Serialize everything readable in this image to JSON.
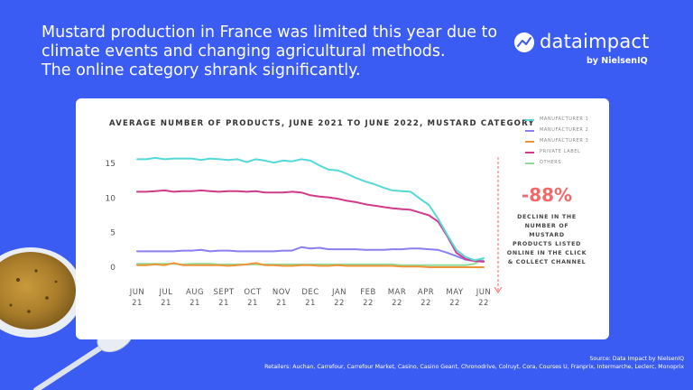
{
  "headline": {
    "line1": "Mustard production in France was limited this year due to",
    "line2": "climate events and changing agricultural methods.",
    "line3": "The online category shrank significantly."
  },
  "logo": {
    "name": "dataimpact",
    "sub": "by NielsenIQ"
  },
  "callout": {
    "value": "-88%",
    "desc_lines": [
      "DECLINE IN THE",
      "NUMBER OF MUSTARD",
      "PRODUCTS LISTED",
      "ONLINE IN THE CLICK",
      "& COLLECT CHANNEL"
    ]
  },
  "colors": {
    "background": "#3b5cf3",
    "manufacturer_1": "#55d8d8",
    "manufacturer_2": "#8b7ff0",
    "manufacturer_3": "#f0943a",
    "private_label": "#d23a8a",
    "others": "#8fdc9a",
    "callout": "#f06a6a"
  },
  "chart_data": {
    "type": "line",
    "title": "AVERAGE NUMBER OF PRODUCTS, JUNE 2021 TO JUNE 2022, MUSTARD CATEGORY",
    "xlabel": "",
    "ylabel": "",
    "ylim": [
      0,
      16
    ],
    "yticks": [
      "0",
      "5",
      "10",
      "15"
    ],
    "x_ticks": [
      {
        "month": "JUN",
        "year": "21"
      },
      {
        "month": "JUL",
        "year": "21"
      },
      {
        "month": "AUG",
        "year": "21"
      },
      {
        "month": "SEPT",
        "year": "21"
      },
      {
        "month": "OCT",
        "year": "21"
      },
      {
        "month": "NOV",
        "year": "21"
      },
      {
        "month": "DEC",
        "year": "21"
      },
      {
        "month": "JAN",
        "year": "22"
      },
      {
        "month": "FEB",
        "year": "22"
      },
      {
        "month": "MAR",
        "year": "22"
      },
      {
        "month": "APR",
        "year": "22"
      },
      {
        "month": "MAY",
        "year": "22"
      },
      {
        "month": "JUN",
        "year": "22"
      }
    ],
    "grid": false,
    "legend": "top-right",
    "series": [
      {
        "name": "MANUFACTURER 1",
        "color": "#55d8d8",
        "values": [
          15.6,
          15.6,
          15.8,
          15.6,
          15.7,
          15.7,
          15.7,
          15.5,
          15.7,
          15.6,
          15.5,
          15.6,
          15.2,
          15.6,
          15.4,
          15.1,
          15.4,
          15.3,
          15.6,
          15.4,
          14.7,
          14.1,
          14.0,
          13.5,
          12.9,
          12.4,
          12.0,
          11.5,
          11.1,
          11.0,
          10.9,
          9.9,
          9.0,
          7.0,
          4.7,
          2.5,
          1.5,
          1.0,
          1.3
        ]
      },
      {
        "name": "MANUFACTURER 2",
        "color": "#8b7ff0",
        "values": [
          2.3,
          2.3,
          2.3,
          2.3,
          2.3,
          2.4,
          2.4,
          2.5,
          2.3,
          2.4,
          2.4,
          2.3,
          2.3,
          2.3,
          2.3,
          2.3,
          2.4,
          2.4,
          2.9,
          2.7,
          2.8,
          2.6,
          2.6,
          2.6,
          2.6,
          2.5,
          2.5,
          2.5,
          2.6,
          2.6,
          2.7,
          2.7,
          2.6,
          2.5,
          2.1,
          1.6,
          1.1,
          0.9,
          0.9
        ]
      },
      {
        "name": "MANUFACTURER 3",
        "color": "#f0943a",
        "values": [
          0.3,
          0.3,
          0.4,
          0.3,
          0.6,
          0.3,
          0.3,
          0.3,
          0.3,
          0.3,
          0.2,
          0.3,
          0.4,
          0.6,
          0.3,
          0.3,
          0.2,
          0.2,
          0.3,
          0.3,
          0.2,
          0.2,
          0.3,
          0.2,
          0.2,
          0.2,
          0.2,
          0.2,
          0.2,
          0.1,
          0.1,
          0.1,
          0.0,
          0.0,
          0.0,
          0.0,
          0.0,
          0.0,
          0.0
        ]
      },
      {
        "name": "PRIVATE LABEL",
        "color": "#d23a8a",
        "values": [
          10.9,
          10.9,
          11.0,
          11.1,
          10.9,
          11.0,
          11.0,
          11.1,
          11.0,
          10.9,
          11.0,
          11.0,
          10.9,
          11.0,
          10.8,
          10.8,
          10.8,
          10.9,
          10.8,
          10.4,
          10.2,
          10.1,
          9.9,
          9.6,
          9.4,
          9.1,
          8.9,
          8.7,
          8.5,
          8.4,
          8.3,
          7.9,
          7.5,
          6.6,
          4.5,
          2.1,
          1.2,
          0.9,
          0.8
        ]
      },
      {
        "name": "OTHERS",
        "color": "#8fdc9a",
        "values": [
          0.5,
          0.5,
          0.5,
          0.5,
          0.5,
          0.4,
          0.5,
          0.5,
          0.5,
          0.4,
          0.4,
          0.4,
          0.4,
          0.4,
          0.4,
          0.4,
          0.4,
          0.4,
          0.4,
          0.4,
          0.4,
          0.4,
          0.4,
          0.4,
          0.4,
          0.4,
          0.4,
          0.4,
          0.4,
          0.3,
          0.3,
          0.3,
          0.3,
          0.3,
          0.3,
          0.3,
          0.3,
          0.5,
          1.3
        ]
      }
    ]
  },
  "source": {
    "line1": "Source: Data Impact by NielsenIQ",
    "line2": "Retailers: Auchan, Carrefour, Carrefour Market, Casino, Casino Geant, Chronodrive, Colruyt, Cora, Courses U, Franprix, Intermarche, Leclerc, Monoprix"
  }
}
